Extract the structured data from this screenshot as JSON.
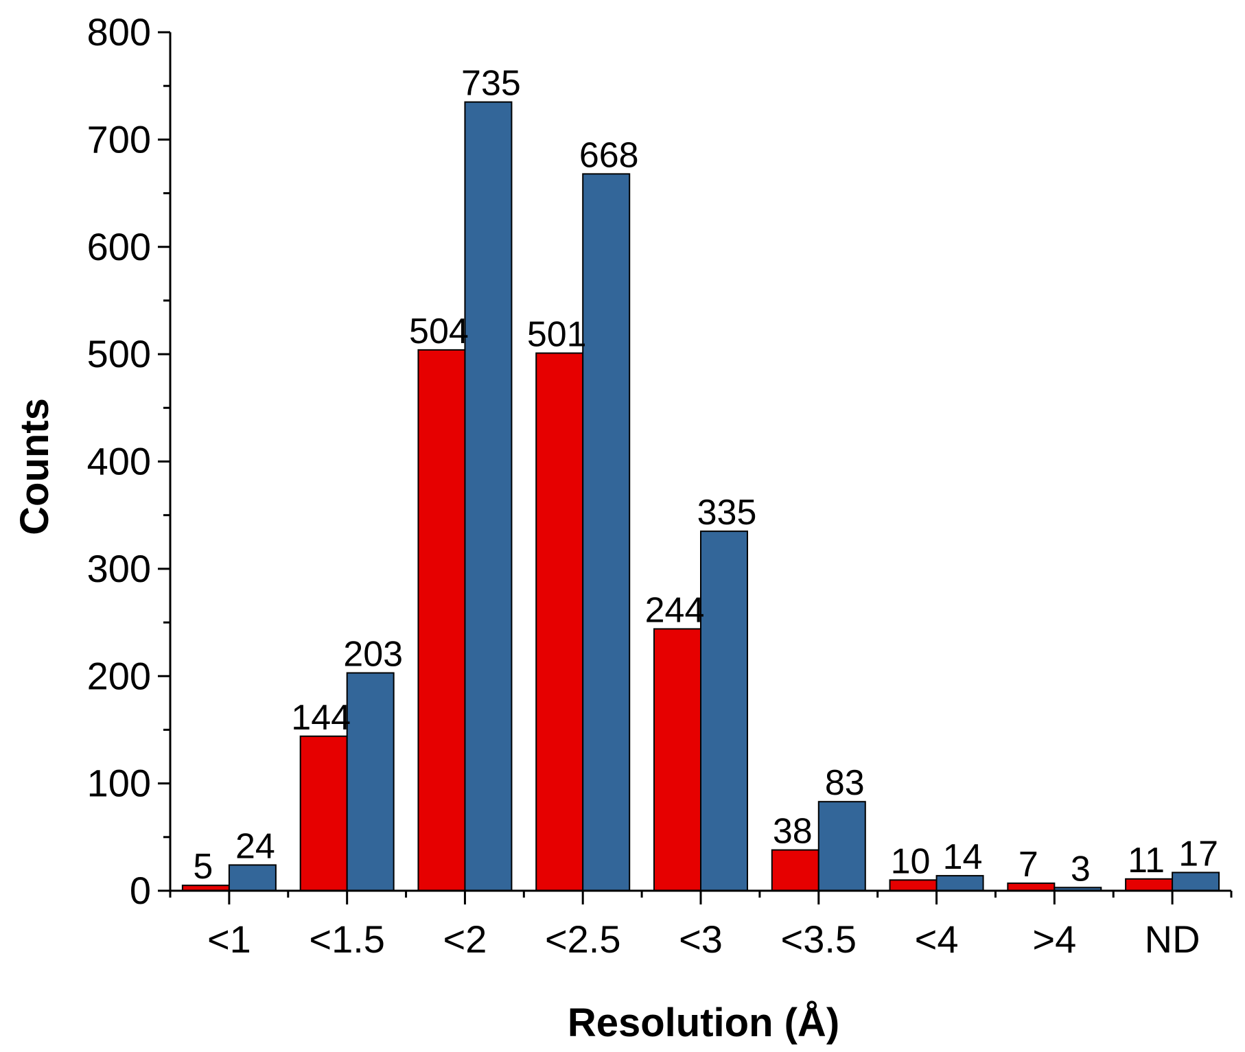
{
  "chart_data": {
    "type": "bar",
    "title": "",
    "xlabel": "Resolution (Å)",
    "ylabel": "Counts",
    "ylim": [
      0,
      800
    ],
    "yticks": [
      0,
      100,
      200,
      300,
      400,
      500,
      600,
      700,
      800
    ],
    "categories": [
      "<1",
      "<1.5",
      "<2",
      "<2.5",
      "<3",
      "<3.5",
      "<4",
      ">4",
      "ND"
    ],
    "series": [
      {
        "values": [
          5,
          144,
          504,
          501,
          244,
          38,
          10,
          7,
          11
        ],
        "color": "#e60000"
      },
      {
        "values": [
          24,
          203,
          735,
          668,
          335,
          83,
          14,
          3,
          17
        ],
        "color": "#336699"
      }
    ],
    "data_labels": true,
    "grid": false,
    "legend": "none"
  }
}
